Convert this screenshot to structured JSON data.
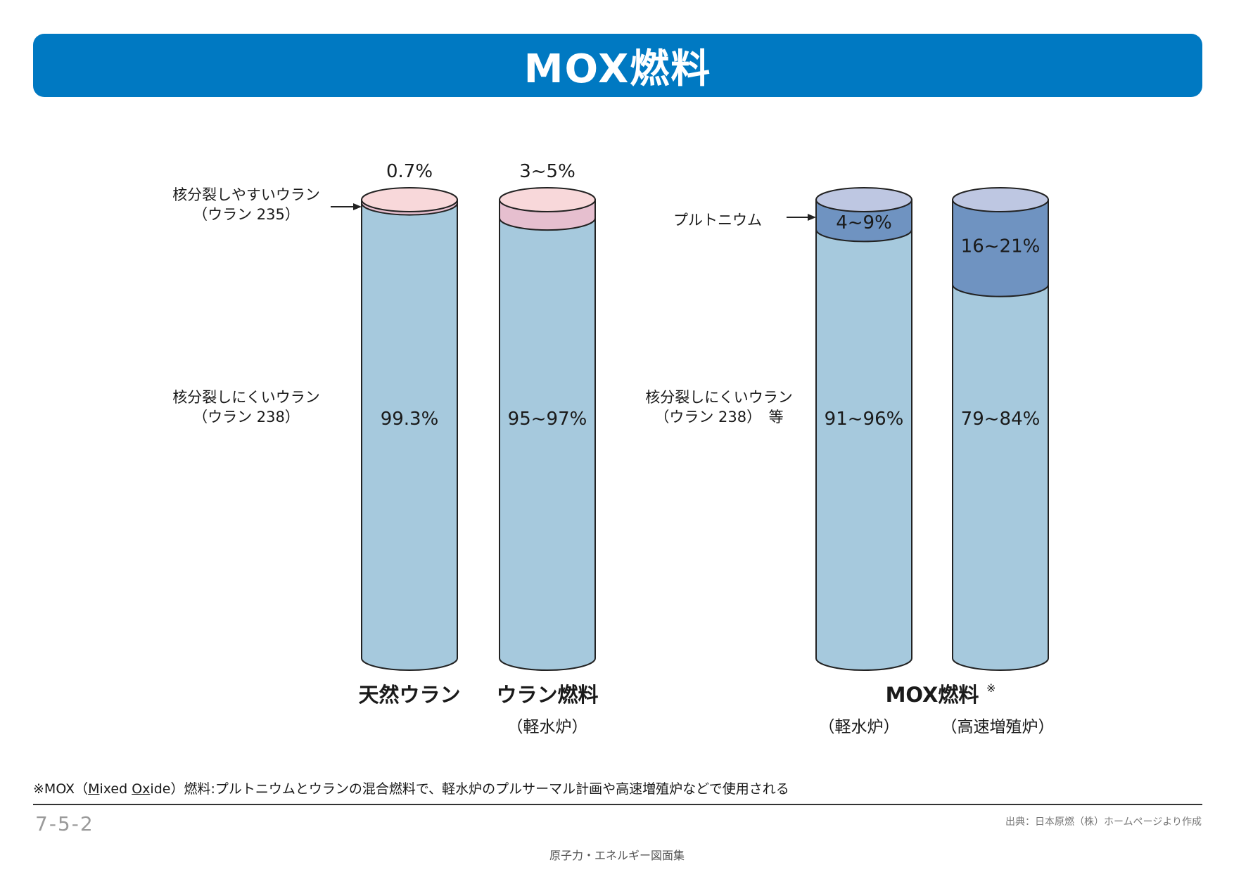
{
  "title": "MOX燃料",
  "colors": {
    "title_bg": "#0079c2",
    "uranium238": "#a6c9dd",
    "uranium235": "#f8d8da",
    "uranium235_band": "#e6bfcf",
    "plutonium": "#6f93c1",
    "plutonium_top": "#bec7e2"
  },
  "chart_data": {
    "type": "bar",
    "stacked": true,
    "series_labels": {
      "fissile_uranium": [
        "核分裂しやすいウラン",
        "（ウラン 235）"
      ],
      "plutonium": "プルトニウム",
      "nonfissile_uranium": [
        "核分裂しにくいウラン",
        "（ウラン 238）"
      ],
      "nonfissile_uranium_etc": [
        "核分裂しにくいウラン",
        "（ウラン 238）　等"
      ]
    },
    "bars": [
      {
        "label": "天然ウラン",
        "sublabel": "",
        "top_label": "0.7%",
        "upper_label": "",
        "lower_label": "99.3%",
        "upper_value": 0.7,
        "lower_value": 99.3,
        "upper_kind": "uranium235"
      },
      {
        "label": "ウラン燃料",
        "sublabel": "（軽水炉）",
        "top_label": "3~5%",
        "upper_label": "",
        "lower_label": "95~97%",
        "upper_value": 4,
        "lower_value": 96,
        "upper_kind": "uranium235"
      },
      {
        "label": "",
        "sublabel": "（軽水炉）",
        "top_label": "",
        "upper_label": "4~9%",
        "lower_label": "91~96%",
        "upper_value": 6.5,
        "lower_value": 93.5,
        "upper_kind": "plutonium"
      },
      {
        "label": "",
        "sublabel": "（高速増殖炉）",
        "top_label": "",
        "upper_label": "16~21%",
        "lower_label": "79~84%",
        "upper_value": 18.5,
        "lower_value": 81.5,
        "upper_kind": "plutonium"
      }
    ],
    "group_label": "MOX燃料",
    "group_label_mark": "※"
  },
  "footnote": {
    "prefix": "※MOX（",
    "m": "M",
    "ixed": "ixed ",
    "ox": "Ox",
    "ide": "ide）燃料:プルトニウムとウランの混合燃料で、軽水炉のプルサーマル計画や高速増殖炉などで使用される"
  },
  "page_number": "7-5-2",
  "source": "出典：日本原燃（株）ホームページより作成",
  "collection": "原子力・エネルギー図面集"
}
